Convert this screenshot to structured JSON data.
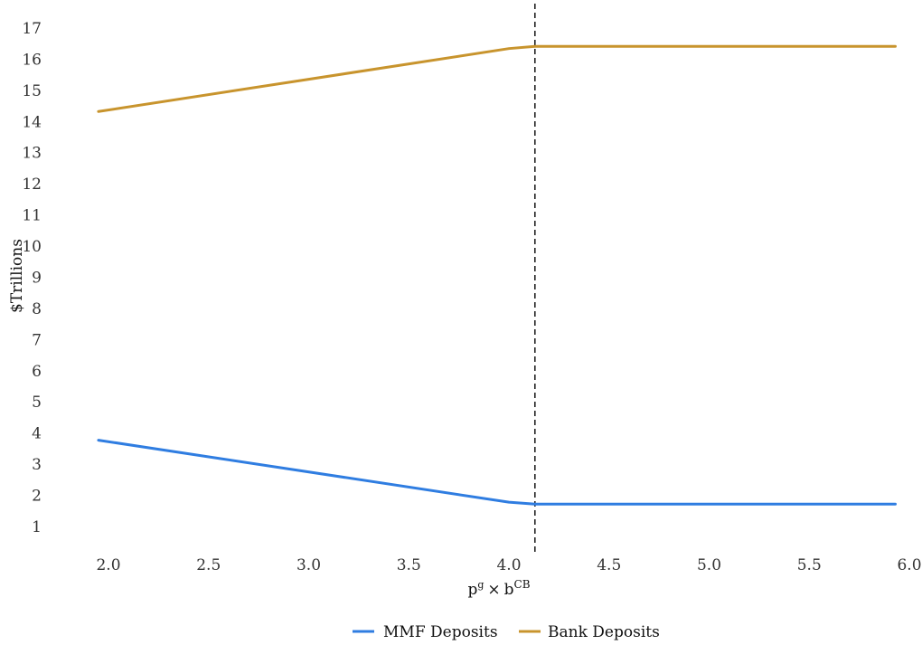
{
  "chart_data": {
    "type": "line",
    "xlabel": {
      "base": "p",
      "sup": "g",
      "op": "×",
      "base2": "b",
      "sup2": "CB"
    },
    "ylabel": "$Trillions",
    "xlim": [
      1.95,
      6.0
    ],
    "ylim": [
      0.3,
      17.5
    ],
    "xticks": [
      "2.0",
      "2.5",
      "3.0",
      "3.5",
      "4.0",
      "4.5",
      "5.0",
      "5.5",
      "6.0"
    ],
    "yticks": [
      "1",
      "2",
      "3",
      "4",
      "5",
      "6",
      "7",
      "8",
      "9",
      "10",
      "11",
      "12",
      "13",
      "14",
      "15",
      "16",
      "17"
    ],
    "vline_x": 4.13,
    "grid": false,
    "legend_position": "bottom",
    "series": [
      {
        "name": "MMF Deposits",
        "color": "#2f7de1",
        "x": [
          1.95,
          4.0,
          4.13,
          5.93
        ],
        "y": [
          3.77,
          1.78,
          1.72,
          1.72
        ]
      },
      {
        "name": "Bank Deposits",
        "color": "#c8942d",
        "x": [
          1.95,
          4.0,
          4.13,
          5.93
        ],
        "y": [
          14.32,
          16.34,
          16.41,
          16.41
        ]
      }
    ]
  }
}
